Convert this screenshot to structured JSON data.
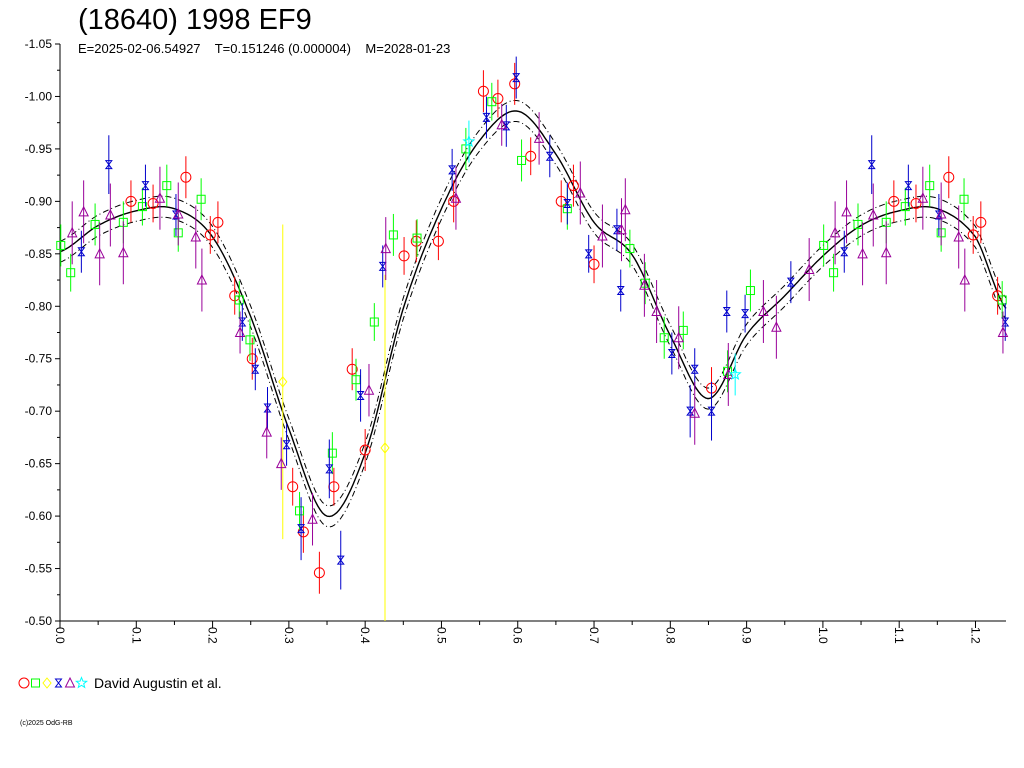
{
  "header": {
    "title": "(18640) 1998 EF9",
    "subtitle": "E=2025-02-06.54927    T=0.151246 (0.000004)    M=2028-01-23"
  },
  "legend": {
    "text": "David Augustin et al.",
    "symbols": [
      {
        "shape": "circle",
        "color": "#ff0000"
      },
      {
        "shape": "square",
        "color": "#00ff00"
      },
      {
        "shape": "diamond",
        "color": "#ffff00"
      },
      {
        "shape": "hourglass",
        "color": "#0000cc"
      },
      {
        "shape": "triangle",
        "color": "#990099"
      },
      {
        "shape": "star",
        "color": "#00ffff"
      }
    ]
  },
  "copyright": "(c)2025 OdG-RB",
  "chart_data": {
    "type": "scatter",
    "title": "(18640) 1998 EF9",
    "subtitle": "E=2025-02-06.54927    T=0.151246 (0.000004)    M=2028-01-23",
    "xlabel": "",
    "ylabel": "",
    "xlim": [
      0.0,
      1.24
    ],
    "ylim": [
      -1.05,
      -0.5
    ],
    "y_inverted": true,
    "grid": false,
    "legend_position": "bottom-left",
    "x_ticks": [
      "0.0",
      "0.1",
      "0.2",
      "0.3",
      "0.4",
      "0.5",
      "0.6",
      "0.7",
      "0.8",
      "0.9",
      "1.0",
      "1.1",
      "1.2"
    ],
    "y_ticks": [
      "-1.05",
      "-1.00",
      "-0.95",
      "-0.90",
      "-0.85",
      "-0.80",
      "-0.75",
      "-0.70",
      "-0.65",
      "-0.60",
      "-0.55",
      "-0.50"
    ],
    "fit_curve": {
      "period_phase": 1.0,
      "x": [
        0.0,
        0.05,
        0.1,
        0.15,
        0.2,
        0.25,
        0.3,
        0.35,
        0.4,
        0.45,
        0.5,
        0.55,
        0.6,
        0.65,
        0.7,
        0.75,
        0.8,
        0.85,
        0.9,
        0.95,
        1.0,
        1.05,
        1.1,
        1.15,
        1.2,
        1.24
      ],
      "y": [
        -0.852,
        -0.877,
        -0.891,
        -0.893,
        -0.866,
        -0.79,
        -0.683,
        -0.6,
        -0.66,
        -0.798,
        -0.893,
        -0.958,
        -0.986,
        -0.945,
        -0.88,
        -0.849,
        -0.772,
        -0.712,
        -0.773,
        -0.81,
        -0.848,
        -0.877,
        -0.891,
        -0.893,
        -0.866,
        -0.798
      ],
      "band": 0.01
    },
    "series": [
      {
        "marker": "circle",
        "color": "#ff0000",
        "points": [
          {
            "x": 0.093,
            "y": -0.9,
            "err": 0.02
          },
          {
            "x": 0.122,
            "y": -0.898,
            "err": 0.018
          },
          {
            "x": 0.165,
            "y": -0.923,
            "err": 0.02
          },
          {
            "x": 0.197,
            "y": -0.868,
            "err": 0.018
          },
          {
            "x": 0.207,
            "y": -0.88,
            "err": 0.02
          },
          {
            "x": 0.229,
            "y": -0.81,
            "err": 0.018
          },
          {
            "x": 0.252,
            "y": -0.75,
            "err": 0.02
          },
          {
            "x": 0.305,
            "y": -0.628,
            "err": 0.018
          },
          {
            "x": 0.319,
            "y": -0.585,
            "err": 0.02
          },
          {
            "x": 0.34,
            "y": -0.546,
            "err": 0.02
          },
          {
            "x": 0.359,
            "y": -0.628,
            "err": 0.018
          },
          {
            "x": 0.383,
            "y": -0.74,
            "err": 0.02
          },
          {
            "x": 0.4,
            "y": -0.663,
            "err": 0.02
          },
          {
            "x": 0.451,
            "y": -0.848,
            "err": 0.018
          },
          {
            "x": 0.467,
            "y": -0.862,
            "err": 0.02
          },
          {
            "x": 0.496,
            "y": -0.862,
            "err": 0.018
          },
          {
            "x": 0.516,
            "y": -0.9,
            "err": 0.02
          },
          {
            "x": 0.555,
            "y": -1.005,
            "err": 0.02
          },
          {
            "x": 0.574,
            "y": -0.998,
            "err": 0.018
          },
          {
            "x": 0.596,
            "y": -1.012,
            "err": 0.02
          },
          {
            "x": 0.617,
            "y": -0.943,
            "err": 0.018
          },
          {
            "x": 0.657,
            "y": -0.9,
            "err": 0.02
          },
          {
            "x": 0.673,
            "y": -0.915,
            "err": 0.02
          },
          {
            "x": 0.7,
            "y": -0.84,
            "err": 0.018
          },
          {
            "x": 0.854,
            "y": -0.722,
            "err": 0.02
          },
          {
            "x": 1.093,
            "y": -0.9,
            "err": 0.02
          },
          {
            "x": 1.122,
            "y": -0.898,
            "err": 0.018
          },
          {
            "x": 1.165,
            "y": -0.923,
            "err": 0.02
          },
          {
            "x": 1.197,
            "y": -0.868,
            "err": 0.018
          },
          {
            "x": 1.207,
            "y": -0.88,
            "err": 0.02
          },
          {
            "x": 1.229,
            "y": -0.81,
            "err": 0.018
          }
        ]
      },
      {
        "marker": "square",
        "color": "#00ff00",
        "points": [
          {
            "x": 0.001,
            "y": -0.858,
            "err": 0.02
          },
          {
            "x": 0.014,
            "y": -0.832,
            "err": 0.018
          },
          {
            "x": 0.046,
            "y": -0.878,
            "err": 0.02
          },
          {
            "x": 0.083,
            "y": -0.88,
            "err": 0.02
          },
          {
            "x": 0.108,
            "y": -0.895,
            "err": 0.018
          },
          {
            "x": 0.14,
            "y": -0.915,
            "err": 0.02
          },
          {
            "x": 0.155,
            "y": -0.87,
            "err": 0.018
          },
          {
            "x": 0.185,
            "y": -0.902,
            "err": 0.02
          },
          {
            "x": 0.235,
            "y": -0.806,
            "err": 0.018
          },
          {
            "x": 0.249,
            "y": -0.768,
            "err": 0.02
          },
          {
            "x": 0.314,
            "y": -0.605,
            "err": 0.018
          },
          {
            "x": 0.357,
            "y": -0.66,
            "err": 0.02
          },
          {
            "x": 0.388,
            "y": -0.73,
            "err": 0.02
          },
          {
            "x": 0.412,
            "y": -0.785,
            "err": 0.018
          },
          {
            "x": 0.437,
            "y": -0.868,
            "err": 0.02
          },
          {
            "x": 0.468,
            "y": -0.865,
            "err": 0.018
          },
          {
            "x": 0.532,
            "y": -0.95,
            "err": 0.02
          },
          {
            "x": 0.566,
            "y": -0.995,
            "err": 0.018
          },
          {
            "x": 0.605,
            "y": -0.939,
            "err": 0.02
          },
          {
            "x": 0.665,
            "y": -0.893,
            "err": 0.02
          },
          {
            "x": 0.747,
            "y": -0.855,
            "err": 0.018
          },
          {
            "x": 0.767,
            "y": -0.822,
            "err": 0.02
          },
          {
            "x": 0.792,
            "y": -0.77,
            "err": 0.02
          },
          {
            "x": 0.817,
            "y": -0.777,
            "err": 0.018
          },
          {
            "x": 0.875,
            "y": -0.738,
            "err": 0.02
          },
          {
            "x": 0.905,
            "y": -0.815,
            "err": 0.02
          },
          {
            "x": 1.001,
            "y": -0.858,
            "err": 0.02
          },
          {
            "x": 1.014,
            "y": -0.832,
            "err": 0.018
          },
          {
            "x": 1.046,
            "y": -0.878,
            "err": 0.02
          },
          {
            "x": 1.083,
            "y": -0.88,
            "err": 0.02
          },
          {
            "x": 1.108,
            "y": -0.895,
            "err": 0.018
          },
          {
            "x": 1.14,
            "y": -0.915,
            "err": 0.02
          },
          {
            "x": 1.155,
            "y": -0.87,
            "err": 0.018
          },
          {
            "x": 1.185,
            "y": -0.902,
            "err": 0.02
          },
          {
            "x": 1.235,
            "y": -0.806,
            "err": 0.018
          }
        ]
      },
      {
        "marker": "diamond",
        "color": "#ffff00",
        "points": [
          {
            "x": 0.292,
            "y": -0.728,
            "err": 0.15
          },
          {
            "x": 0.426,
            "y": -0.665,
            "err": 0.165
          }
        ]
      },
      {
        "marker": "hourglass",
        "color": "#0000cc",
        "points": [
          {
            "x": 0.028,
            "y": -0.852,
            "err": 0.02
          },
          {
            "x": 0.064,
            "y": -0.935,
            "err": 0.028
          },
          {
            "x": 0.112,
            "y": -0.915,
            "err": 0.02
          },
          {
            "x": 0.152,
            "y": -0.887,
            "err": 0.02
          },
          {
            "x": 0.239,
            "y": -0.785,
            "err": 0.018
          },
          {
            "x": 0.256,
            "y": -0.74,
            "err": 0.02
          },
          {
            "x": 0.272,
            "y": -0.703,
            "err": 0.02
          },
          {
            "x": 0.297,
            "y": -0.668,
            "err": 0.02
          },
          {
            "x": 0.316,
            "y": -0.588,
            "err": 0.03
          },
          {
            "x": 0.353,
            "y": -0.645,
            "err": 0.028
          },
          {
            "x": 0.368,
            "y": -0.558,
            "err": 0.028
          },
          {
            "x": 0.394,
            "y": -0.715,
            "err": 0.025
          },
          {
            "x": 0.423,
            "y": -0.838,
            "err": 0.02
          },
          {
            "x": 0.514,
            "y": -0.93,
            "err": 0.02
          },
          {
            "x": 0.559,
            "y": -0.98,
            "err": 0.02
          },
          {
            "x": 0.585,
            "y": -0.972,
            "err": 0.02
          },
          {
            "x": 0.598,
            "y": -1.018,
            "err": 0.02
          },
          {
            "x": 0.642,
            "y": -0.943,
            "err": 0.02
          },
          {
            "x": 0.665,
            "y": -0.898,
            "err": 0.02
          },
          {
            "x": 0.693,
            "y": -0.85,
            "err": 0.018
          },
          {
            "x": 0.73,
            "y": -0.873,
            "err": 0.02
          },
          {
            "x": 0.735,
            "y": -0.815,
            "err": 0.02
          },
          {
            "x": 0.802,
            "y": -0.755,
            "err": 0.02
          },
          {
            "x": 0.826,
            "y": -0.7,
            "err": 0.025
          },
          {
            "x": 0.832,
            "y": -0.74,
            "err": 0.02
          },
          {
            "x": 0.854,
            "y": -0.7,
            "err": 0.028
          },
          {
            "x": 0.874,
            "y": -0.795,
            "err": 0.02
          },
          {
            "x": 0.898,
            "y": -0.793,
            "err": 0.018
          },
          {
            "x": 0.958,
            "y": -0.823,
            "err": 0.02
          },
          {
            "x": 1.028,
            "y": -0.852,
            "err": 0.02
          },
          {
            "x": 1.064,
            "y": -0.935,
            "err": 0.028
          },
          {
            "x": 1.112,
            "y": -0.915,
            "err": 0.02
          },
          {
            "x": 1.152,
            "y": -0.887,
            "err": 0.02
          },
          {
            "x": 1.239,
            "y": -0.785,
            "err": 0.018
          }
        ]
      },
      {
        "marker": "triangle",
        "color": "#990099",
        "points": [
          {
            "x": 0.016,
            "y": -0.87,
            "err": 0.03
          },
          {
            "x": 0.031,
            "y": -0.89,
            "err": 0.03
          },
          {
            "x": 0.052,
            "y": -0.85,
            "err": 0.03
          },
          {
            "x": 0.066,
            "y": -0.887,
            "err": 0.03
          },
          {
            "x": 0.083,
            "y": -0.851,
            "err": 0.03
          },
          {
            "x": 0.131,
            "y": -0.903,
            "err": 0.03
          },
          {
            "x": 0.155,
            "y": -0.888,
            "err": 0.03
          },
          {
            "x": 0.178,
            "y": -0.866,
            "err": 0.03
          },
          {
            "x": 0.186,
            "y": -0.825,
            "err": 0.03
          },
          {
            "x": 0.236,
            "y": -0.775,
            "err": 0.02
          },
          {
            "x": 0.271,
            "y": -0.68,
            "err": 0.025
          },
          {
            "x": 0.29,
            "y": -0.65,
            "err": 0.025
          },
          {
            "x": 0.331,
            "y": -0.597,
            "err": 0.025
          },
          {
            "x": 0.405,
            "y": -0.72,
            "err": 0.025
          },
          {
            "x": 0.427,
            "y": -0.855,
            "err": 0.03
          },
          {
            "x": 0.519,
            "y": -0.903,
            "err": 0.03
          },
          {
            "x": 0.579,
            "y": -0.973,
            "err": 0.02
          },
          {
            "x": 0.628,
            "y": -0.96,
            "err": 0.025
          },
          {
            "x": 0.682,
            "y": -0.908,
            "err": 0.03
          },
          {
            "x": 0.711,
            "y": -0.867,
            "err": 0.03
          },
          {
            "x": 0.736,
            "y": -0.873,
            "err": 0.03
          },
          {
            "x": 0.741,
            "y": -0.892,
            "err": 0.03
          },
          {
            "x": 0.766,
            "y": -0.82,
            "err": 0.03
          },
          {
            "x": 0.782,
            "y": -0.795,
            "err": 0.03
          },
          {
            "x": 0.811,
            "y": -0.77,
            "err": 0.03
          },
          {
            "x": 0.832,
            "y": -0.698,
            "err": 0.03
          },
          {
            "x": 0.876,
            "y": -0.735,
            "err": 0.03
          },
          {
            "x": 0.922,
            "y": -0.795,
            "err": 0.03
          },
          {
            "x": 0.939,
            "y": -0.78,
            "err": 0.03
          },
          {
            "x": 0.982,
            "y": -0.835,
            "err": 0.03
          },
          {
            "x": 1.016,
            "y": -0.87,
            "err": 0.03
          },
          {
            "x": 1.031,
            "y": -0.89,
            "err": 0.03
          },
          {
            "x": 1.052,
            "y": -0.85,
            "err": 0.03
          },
          {
            "x": 1.066,
            "y": -0.887,
            "err": 0.03
          },
          {
            "x": 1.083,
            "y": -0.851,
            "err": 0.03
          },
          {
            "x": 1.131,
            "y": -0.903,
            "err": 0.03
          },
          {
            "x": 1.155,
            "y": -0.888,
            "err": 0.03
          },
          {
            "x": 1.178,
            "y": -0.866,
            "err": 0.03
          },
          {
            "x": 1.186,
            "y": -0.825,
            "err": 0.03
          },
          {
            "x": 1.236,
            "y": -0.775,
            "err": 0.02
          }
        ]
      },
      {
        "marker": "star",
        "color": "#00ffff",
        "points": [
          {
            "x": 0.536,
            "y": -0.957,
            "err": 0.02
          },
          {
            "x": 0.885,
            "y": -0.735,
            "err": 0.02
          }
        ]
      }
    ]
  }
}
